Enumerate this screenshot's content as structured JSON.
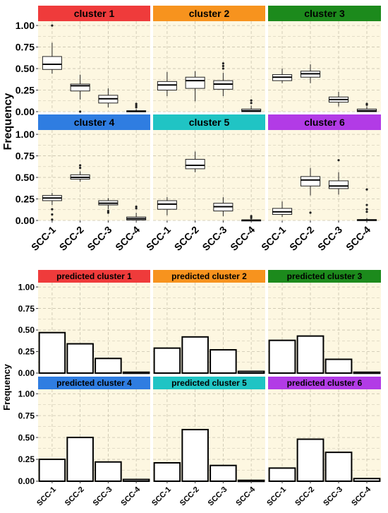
{
  "panels_top": {
    "ylabel": "Frequency",
    "titles": [
      "cluster 1",
      "cluster 2",
      "cluster 3",
      "cluster 4",
      "cluster 5",
      "cluster 6"
    ]
  },
  "panels_bottom": {
    "ylabel": "Frequency",
    "titles": [
      "predicted cluster 1",
      "predicted cluster 2",
      "predicted cluster 3",
      "predicted cluster 4",
      "predicted cluster 5",
      "predicted cluster 6"
    ]
  },
  "colors": {
    "strips": [
      "#ef3b3b",
      "#f7931e",
      "#1c8a1c",
      "#2f7de1",
      "#20c4c4",
      "#b23be6"
    ],
    "panel_bg": "#fdf7e1",
    "grid": "#c9c3ae"
  },
  "chart_data": [
    {
      "type": "box",
      "title": "",
      "ylabel": "Frequency",
      "categories": [
        "SCC-1",
        "SCC-2",
        "SCC-3",
        "SCC-4"
      ],
      "ylim": [
        0,
        1.05
      ],
      "yticks": [
        "0.00",
        "0.25",
        "0.50",
        "0.75",
        "1.00"
      ],
      "grid": true,
      "facets": [
        {
          "name": "cluster 1",
          "boxes": [
            {
              "min": 0.44,
              "q1": 0.49,
              "median": 0.55,
              "q3": 0.64,
              "max": 0.8,
              "outliers": [
                1.0
              ]
            },
            {
              "min": 0.14,
              "q1": 0.24,
              "median": 0.3,
              "q3": 0.32,
              "max": 0.43,
              "outliers": [
                0.0
              ]
            },
            {
              "min": 0.05,
              "q1": 0.1,
              "median": 0.15,
              "q3": 0.19,
              "max": 0.27,
              "outliers": []
            },
            {
              "min": 0.0,
              "q1": 0.0,
              "median": 0.005,
              "q3": 0.01,
              "max": 0.03,
              "outliers": [
                0.05,
                0.07,
                0.09
              ]
            }
          ]
        },
        {
          "name": "cluster 2",
          "boxes": [
            {
              "min": 0.18,
              "q1": 0.25,
              "median": 0.31,
              "q3": 0.35,
              "max": 0.46,
              "outliers": []
            },
            {
              "min": 0.12,
              "q1": 0.27,
              "median": 0.36,
              "q3": 0.4,
              "max": 0.47,
              "outliers": []
            },
            {
              "min": 0.18,
              "q1": 0.26,
              "median": 0.32,
              "q3": 0.36,
              "max": 0.45,
              "outliers": [
                0.5,
                0.53,
                0.56
              ]
            },
            {
              "min": 0.0,
              "q1": 0.0,
              "median": 0.01,
              "q3": 0.03,
              "max": 0.07,
              "outliers": [
                0.1,
                0.13
              ]
            }
          ]
        },
        {
          "name": "cluster 3",
          "boxes": [
            {
              "min": 0.33,
              "q1": 0.36,
              "median": 0.4,
              "q3": 0.43,
              "max": 0.5,
              "outliers": []
            },
            {
              "min": 0.33,
              "q1": 0.4,
              "median": 0.44,
              "q3": 0.47,
              "max": 0.55,
              "outliers": []
            },
            {
              "min": 0.06,
              "q1": 0.11,
              "median": 0.14,
              "q3": 0.17,
              "max": 0.23,
              "outliers": []
            },
            {
              "min": 0.0,
              "q1": 0.0,
              "median": 0.01,
              "q3": 0.03,
              "max": 0.06,
              "outliers": [
                0.08,
                0.09
              ]
            }
          ]
        },
        {
          "name": "cluster 4",
          "boxes": [
            {
              "min": 0.18,
              "q1": 0.23,
              "median": 0.26,
              "q3": 0.29,
              "max": 0.32,
              "outliers": [
                0.13,
                0.07,
                0.01
              ]
            },
            {
              "min": 0.45,
              "q1": 0.48,
              "median": 0.5,
              "q3": 0.53,
              "max": 0.57,
              "outliers": [
                0.61,
                0.64
              ]
            },
            {
              "min": 0.13,
              "q1": 0.18,
              "median": 0.2,
              "q3": 0.23,
              "max": 0.26,
              "outliers": [
                0.09,
                0.11
              ]
            },
            {
              "min": 0.0,
              "q1": 0.005,
              "median": 0.02,
              "q3": 0.04,
              "max": 0.09,
              "outliers": [
                0.14,
                0.16
              ]
            }
          ]
        },
        {
          "name": "cluster 5",
          "boxes": [
            {
              "min": 0.06,
              "q1": 0.13,
              "median": 0.19,
              "q3": 0.23,
              "max": 0.27,
              "outliers": []
            },
            {
              "min": 0.56,
              "q1": 0.6,
              "median": 0.64,
              "q3": 0.71,
              "max": 0.8,
              "outliers": []
            },
            {
              "min": 0.05,
              "q1": 0.11,
              "median": 0.16,
              "q3": 0.2,
              "max": 0.27,
              "outliers": []
            },
            {
              "min": 0.0,
              "q1": 0.0,
              "median": 0.003,
              "q3": 0.006,
              "max": 0.02,
              "outliers": [
                0.03,
                0.05
              ]
            }
          ]
        },
        {
          "name": "cluster 6",
          "boxes": [
            {
              "min": 0.04,
              "q1": 0.07,
              "median": 0.1,
              "q3": 0.14,
              "max": 0.22,
              "outliers": []
            },
            {
              "min": 0.29,
              "q1": 0.4,
              "median": 0.47,
              "q3": 0.51,
              "max": 0.61,
              "outliers": [
                0.09
              ]
            },
            {
              "min": 0.3,
              "q1": 0.37,
              "median": 0.4,
              "q3": 0.46,
              "max": 0.56,
              "outliers": [
                0.7
              ]
            },
            {
              "min": 0.0,
              "q1": 0.0,
              "median": 0.005,
              "q3": 0.01,
              "max": 0.03,
              "outliers": [
                0.1,
                0.13,
                0.18,
                0.36
              ]
            }
          ]
        }
      ]
    },
    {
      "type": "bar",
      "title": "",
      "ylabel": "Frequency",
      "categories": [
        "SCC-1",
        "SCC-2",
        "SCC-3",
        "SCC-4"
      ],
      "ylim": [
        0,
        1.05
      ],
      "yticks": [
        "0.00",
        "0.25",
        "0.50",
        "0.75",
        "1.00"
      ],
      "grid": true,
      "facets": [
        {
          "name": "predicted cluster 1",
          "values": [
            0.47,
            0.34,
            0.17,
            0.01
          ]
        },
        {
          "name": "predicted cluster 2",
          "values": [
            0.29,
            0.42,
            0.27,
            0.02
          ]
        },
        {
          "name": "predicted cluster 3",
          "values": [
            0.38,
            0.43,
            0.16,
            0.01
          ]
        },
        {
          "name": "predicted cluster 4",
          "values": [
            0.25,
            0.5,
            0.22,
            0.02
          ]
        },
        {
          "name": "predicted cluster 5",
          "values": [
            0.21,
            0.59,
            0.18,
            0.01
          ]
        },
        {
          "name": "predicted cluster 6",
          "values": [
            0.15,
            0.48,
            0.33,
            0.03
          ]
        }
      ]
    }
  ]
}
